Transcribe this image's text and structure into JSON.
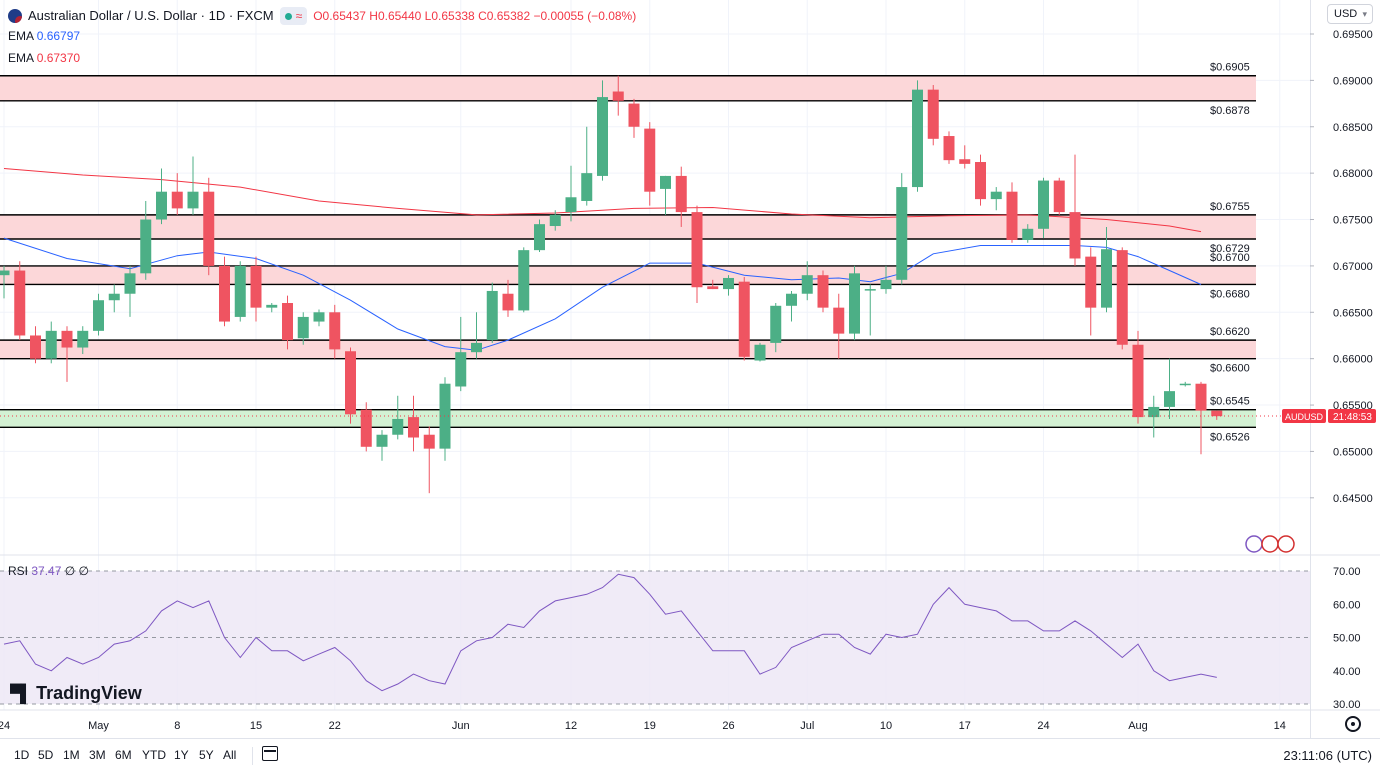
{
  "header": {
    "symbol_title": "Australian Dollar / U.S. Dollar · 1D · FXCM",
    "open": "O0.65437",
    "high": "H0.65440",
    "low": "L0.65338",
    "close": "C0.65382",
    "change": "−0.00055 (−0.08%)",
    "pill_icon": "≈"
  },
  "indicators": {
    "ema1_label": "EMA",
    "ema1_value": "0.66797",
    "ema1_color": "#2962ff",
    "ema2_label": "EMA",
    "ema2_value": "0.67370",
    "ema2_color": "#f23645",
    "rsi_label": "RSI",
    "rsi_value": "37.47",
    "rsi_extra": "∅ ∅",
    "rsi_color": "#7e57c2"
  },
  "currency_button": "USD",
  "price_tag": {
    "symbol": "AUDUSD",
    "countdown": "21:48:53",
    "value": 0.65382
  },
  "timeframes": [
    "1D",
    "5D",
    "1M",
    "3M",
    "6M",
    "YTD",
    "1Y",
    "5Y",
    "All"
  ],
  "clock": "23:11:06 (UTC)",
  "watermark": "TradingView",
  "colors": {
    "up": "#4caf86",
    "down": "#ef5461",
    "zone_red": "#fcd7d9",
    "zone_green": "#d3f1d3"
  },
  "chart_data": {
    "type": "candlestick",
    "title": "Australian Dollar / U.S. Dollar · 1D · FXCM",
    "y_range": [
      0.6425,
      0.695
    ],
    "y_ticks": [
      "0.69500",
      "0.69000",
      "0.68500",
      "0.68000",
      "0.67500",
      "0.67000",
      "0.66500",
      "0.66000",
      "0.65500",
      "0.65000",
      "0.64500"
    ],
    "x_labels": [
      {
        "label": "24",
        "index": 0
      },
      {
        "label": "May",
        "index": 6
      },
      {
        "label": "8",
        "index": 11
      },
      {
        "label": "15",
        "index": 16
      },
      {
        "label": "22",
        "index": 21
      },
      {
        "label": "Jun",
        "index": 29
      },
      {
        "label": "12",
        "index": 36
      },
      {
        "label": "19",
        "index": 41
      },
      {
        "label": "26",
        "index": 46
      },
      {
        "label": "Jul",
        "index": 51
      },
      {
        "label": "10",
        "index": 56
      },
      {
        "label": "17",
        "index": 61
      },
      {
        "label": "24",
        "index": 66
      },
      {
        "label": "Aug",
        "index": 72
      },
      {
        "label": "14",
        "index": 81
      }
    ],
    "candles": [
      {
        "o": 0.669,
        "h": 0.67,
        "l": 0.6665,
        "c": 0.6695
      },
      {
        "o": 0.6695,
        "h": 0.6705,
        "l": 0.662,
        "c": 0.6625
      },
      {
        "o": 0.6625,
        "h": 0.6635,
        "l": 0.6595,
        "c": 0.66
      },
      {
        "o": 0.66,
        "h": 0.664,
        "l": 0.6595,
        "c": 0.663
      },
      {
        "o": 0.663,
        "h": 0.6635,
        "l": 0.6575,
        "c": 0.6612
      },
      {
        "o": 0.6612,
        "h": 0.6635,
        "l": 0.6605,
        "c": 0.663
      },
      {
        "o": 0.663,
        "h": 0.667,
        "l": 0.6625,
        "c": 0.6663
      },
      {
        "o": 0.6663,
        "h": 0.668,
        "l": 0.665,
        "c": 0.667
      },
      {
        "o": 0.667,
        "h": 0.67,
        "l": 0.6645,
        "c": 0.6692
      },
      {
        "o": 0.6692,
        "h": 0.677,
        "l": 0.6685,
        "c": 0.675
      },
      {
        "o": 0.675,
        "h": 0.6805,
        "l": 0.6745,
        "c": 0.678
      },
      {
        "o": 0.678,
        "h": 0.68,
        "l": 0.6755,
        "c": 0.6762
      },
      {
        "o": 0.6762,
        "h": 0.6818,
        "l": 0.6755,
        "c": 0.678
      },
      {
        "o": 0.678,
        "h": 0.6795,
        "l": 0.669,
        "c": 0.67
      },
      {
        "o": 0.67,
        "h": 0.671,
        "l": 0.6635,
        "c": 0.664
      },
      {
        "o": 0.6645,
        "h": 0.6705,
        "l": 0.664,
        "c": 0.67
      },
      {
        "o": 0.67,
        "h": 0.671,
        "l": 0.664,
        "c": 0.6655
      },
      {
        "o": 0.6655,
        "h": 0.666,
        "l": 0.665,
        "c": 0.6658
      },
      {
        "o": 0.666,
        "h": 0.6668,
        "l": 0.661,
        "c": 0.662
      },
      {
        "o": 0.6622,
        "h": 0.665,
        "l": 0.6615,
        "c": 0.6645
      },
      {
        "o": 0.664,
        "h": 0.6653,
        "l": 0.6635,
        "c": 0.665
      },
      {
        "o": 0.665,
        "h": 0.6658,
        "l": 0.66,
        "c": 0.661
      },
      {
        "o": 0.6608,
        "h": 0.6612,
        "l": 0.653,
        "c": 0.654
      },
      {
        "o": 0.6545,
        "h": 0.6553,
        "l": 0.65,
        "c": 0.6505
      },
      {
        "o": 0.6505,
        "h": 0.6523,
        "l": 0.649,
        "c": 0.6518
      },
      {
        "o": 0.6518,
        "h": 0.656,
        "l": 0.6513,
        "c": 0.6535
      },
      {
        "o": 0.6537,
        "h": 0.656,
        "l": 0.65,
        "c": 0.6515
      },
      {
        "o": 0.6518,
        "h": 0.6527,
        "l": 0.6455,
        "c": 0.6503
      },
      {
        "o": 0.6503,
        "h": 0.658,
        "l": 0.649,
        "c": 0.6573
      },
      {
        "o": 0.657,
        "h": 0.6645,
        "l": 0.6565,
        "c": 0.6607
      },
      {
        "o": 0.6607,
        "h": 0.665,
        "l": 0.66,
        "c": 0.6617
      },
      {
        "o": 0.662,
        "h": 0.6682,
        "l": 0.6617,
        "c": 0.6673
      },
      {
        "o": 0.667,
        "h": 0.6685,
        "l": 0.6645,
        "c": 0.6652
      },
      {
        "o": 0.6652,
        "h": 0.672,
        "l": 0.665,
        "c": 0.6717
      },
      {
        "o": 0.6717,
        "h": 0.675,
        "l": 0.6715,
        "c": 0.6745
      },
      {
        "o": 0.6743,
        "h": 0.676,
        "l": 0.6738,
        "c": 0.6755
      },
      {
        "o": 0.6758,
        "h": 0.6808,
        "l": 0.6748,
        "c": 0.6774
      },
      {
        "o": 0.677,
        "h": 0.685,
        "l": 0.6765,
        "c": 0.68
      },
      {
        "o": 0.6797,
        "h": 0.69,
        "l": 0.6792,
        "c": 0.6882
      },
      {
        "o": 0.6888,
        "h": 0.6905,
        "l": 0.6862,
        "c": 0.6878
      },
      {
        "o": 0.6875,
        "h": 0.688,
        "l": 0.6838,
        "c": 0.685
      },
      {
        "o": 0.6848,
        "h": 0.6855,
        "l": 0.6765,
        "c": 0.678
      },
      {
        "o": 0.6783,
        "h": 0.6797,
        "l": 0.6755,
        "c": 0.6797
      },
      {
        "o": 0.6797,
        "h": 0.6807,
        "l": 0.6742,
        "c": 0.6758
      },
      {
        "o": 0.6758,
        "h": 0.6765,
        "l": 0.666,
        "c": 0.6677
      },
      {
        "o": 0.6678,
        "h": 0.6685,
        "l": 0.6675,
        "c": 0.6675
      },
      {
        "o": 0.6675,
        "h": 0.669,
        "l": 0.6668,
        "c": 0.6687
      },
      {
        "o": 0.6683,
        "h": 0.6688,
        "l": 0.6598,
        "c": 0.6602
      },
      {
        "o": 0.6598,
        "h": 0.6617,
        "l": 0.6597,
        "c": 0.6615
      },
      {
        "o": 0.6617,
        "h": 0.666,
        "l": 0.6607,
        "c": 0.6657
      },
      {
        "o": 0.6657,
        "h": 0.6673,
        "l": 0.664,
        "c": 0.667
      },
      {
        "o": 0.667,
        "h": 0.6705,
        "l": 0.6663,
        "c": 0.669
      },
      {
        "o": 0.669,
        "h": 0.6695,
        "l": 0.665,
        "c": 0.6655
      },
      {
        "o": 0.6655,
        "h": 0.667,
        "l": 0.66,
        "c": 0.6627
      },
      {
        "o": 0.6627,
        "h": 0.67,
        "l": 0.662,
        "c": 0.6692
      },
      {
        "o": 0.6674,
        "h": 0.668,
        "l": 0.6625,
        "c": 0.6675
      },
      {
        "o": 0.6675,
        "h": 0.67,
        "l": 0.667,
        "c": 0.6685
      },
      {
        "o": 0.6685,
        "h": 0.68,
        "l": 0.668,
        "c": 0.6785
      },
      {
        "o": 0.6785,
        "h": 0.69,
        "l": 0.678,
        "c": 0.689
      },
      {
        "o": 0.689,
        "h": 0.6895,
        "l": 0.683,
        "c": 0.6837
      },
      {
        "o": 0.684,
        "h": 0.6845,
        "l": 0.681,
        "c": 0.6814
      },
      {
        "o": 0.6815,
        "h": 0.683,
        "l": 0.6805,
        "c": 0.681
      },
      {
        "o": 0.6812,
        "h": 0.682,
        "l": 0.6765,
        "c": 0.6772
      },
      {
        "o": 0.6772,
        "h": 0.6785,
        "l": 0.676,
        "c": 0.678
      },
      {
        "o": 0.678,
        "h": 0.679,
        "l": 0.6725,
        "c": 0.6728
      },
      {
        "o": 0.6728,
        "h": 0.6745,
        "l": 0.6725,
        "c": 0.674
      },
      {
        "o": 0.674,
        "h": 0.6795,
        "l": 0.673,
        "c": 0.6792
      },
      {
        "o": 0.6792,
        "h": 0.6795,
        "l": 0.6755,
        "c": 0.6758
      },
      {
        "o": 0.6758,
        "h": 0.682,
        "l": 0.67,
        "c": 0.6708
      },
      {
        "o": 0.671,
        "h": 0.672,
        "l": 0.6625,
        "c": 0.6655
      },
      {
        "o": 0.6655,
        "h": 0.6742,
        "l": 0.665,
        "c": 0.6718
      },
      {
        "o": 0.6717,
        "h": 0.672,
        "l": 0.661,
        "c": 0.6615
      },
      {
        "o": 0.6615,
        "h": 0.663,
        "l": 0.653,
        "c": 0.6537
      },
      {
        "o": 0.6537,
        "h": 0.656,
        "l": 0.6515,
        "c": 0.6548
      },
      {
        "o": 0.6548,
        "h": 0.66,
        "l": 0.6535,
        "c": 0.6565
      },
      {
        "o": 0.6572,
        "h": 0.6575,
        "l": 0.657,
        "c": 0.6573
      },
      {
        "o": 0.6573,
        "h": 0.6575,
        "l": 0.6497,
        "c": 0.6544
      },
      {
        "o": 0.6544,
        "h": 0.6544,
        "l": 0.6534,
        "c": 0.6538
      }
    ],
    "ema_blue": [
      [
        0,
        0.673
      ],
      [
        4,
        0.6708
      ],
      [
        8,
        0.6697
      ],
      [
        11,
        0.6711
      ],
      [
        13,
        0.6715
      ],
      [
        16,
        0.6708
      ],
      [
        19,
        0.669
      ],
      [
        22,
        0.6663
      ],
      [
        25,
        0.6632
      ],
      [
        28,
        0.6613
      ],
      [
        30,
        0.6609
      ],
      [
        32,
        0.662
      ],
      [
        35,
        0.6643
      ],
      [
        38,
        0.6677
      ],
      [
        41,
        0.6703
      ],
      [
        44,
        0.6703
      ],
      [
        47,
        0.669
      ],
      [
        50,
        0.6685
      ],
      [
        53,
        0.6687
      ],
      [
        55,
        0.6683
      ],
      [
        57,
        0.6692
      ],
      [
        59,
        0.6713
      ],
      [
        62,
        0.6722
      ],
      [
        66,
        0.6722
      ],
      [
        68,
        0.6722
      ],
      [
        70,
        0.672
      ],
      [
        72,
        0.671
      ],
      [
        74,
        0.6695
      ],
      [
        76,
        0.668
      ]
    ],
    "ema_red": [
      [
        0,
        0.6805
      ],
      [
        5,
        0.6798
      ],
      [
        10,
        0.6793
      ],
      [
        15,
        0.6785
      ],
      [
        20,
        0.677
      ],
      [
        25,
        0.6762
      ],
      [
        30,
        0.6755
      ],
      [
        35,
        0.6757
      ],
      [
        40,
        0.6762
      ],
      [
        45,
        0.6763
      ],
      [
        50,
        0.6756
      ],
      [
        55,
        0.6752
      ],
      [
        60,
        0.6754
      ],
      [
        65,
        0.6755
      ],
      [
        70,
        0.675
      ],
      [
        74,
        0.6743
      ],
      [
        76,
        0.6737
      ]
    ],
    "zones": [
      {
        "top": 0.6905,
        "bottom": 0.6878,
        "color": "red",
        "labels": [
          "0.6905",
          "0.6878"
        ]
      },
      {
        "top": 0.6755,
        "bottom": 0.6729,
        "color": "red",
        "labels": [
          "0.6755",
          "0.6729"
        ]
      },
      {
        "top": 0.67,
        "bottom": 0.668,
        "color": "red",
        "labels": [
          "0.6700",
          "0.6680"
        ]
      },
      {
        "top": 0.662,
        "bottom": 0.66,
        "color": "red",
        "labels": [
          "0.6620",
          "0.6600"
        ]
      },
      {
        "top": 0.6545,
        "bottom": 0.6526,
        "color": "green",
        "labels": [
          "0.6545",
          "0.6526"
        ]
      }
    ],
    "zone_label_texts": [
      "0.6905",
      "0.6878",
      "0.6755",
      "0.6729",
      "0.6700",
      "0.6680",
      "0.6620",
      "0.6600",
      "0.6545",
      "0.6526"
    ],
    "rsi": {
      "range": [
        30,
        70
      ],
      "ticks": [
        "70.00",
        "60.00",
        "50.00",
        "40.00",
        "30.00"
      ],
      "bands": [
        30,
        50,
        70
      ],
      "values": [
        48,
        49,
        42,
        40,
        44,
        42,
        44,
        48,
        49,
        52,
        58,
        61,
        59,
        61,
        50,
        44,
        50,
        46,
        46,
        43,
        45,
        47,
        43,
        37,
        34,
        36,
        39,
        37,
        36,
        46,
        49,
        50,
        54,
        53,
        58,
        61,
        62,
        63,
        65,
        69,
        68,
        63,
        57,
        58,
        52,
        46,
        46,
        46,
        39,
        41,
        47,
        49,
        51,
        51,
        47,
        45,
        51,
        50,
        51,
        60,
        65,
        60,
        59,
        58,
        55,
        55,
        52,
        52,
        55,
        52,
        48,
        44,
        48,
        40,
        37,
        38,
        39,
        38
      ]
    }
  }
}
